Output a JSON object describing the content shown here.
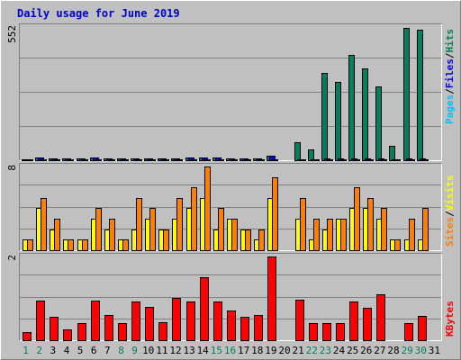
{
  "title": "Daily usage for June 2019",
  "colors": {
    "background": "#c0c0c0",
    "title": "#0000cc",
    "hits": "#00805c",
    "files": "#0000ff",
    "pages": "#00c0ff",
    "visits": "#ffff00",
    "sites": "#ff8000",
    "kbytes": "#ff0000",
    "weekend_day": "#00805c",
    "weekday": "#000000"
  },
  "chart_data": [
    {
      "type": "bar",
      "name_label": "hits-files-pages",
      "ymax_label": "552",
      "ylim": [
        0,
        552
      ],
      "legend": {
        "pages": "Pages",
        "files": "Files",
        "hits": "Hits",
        "sep": "/"
      },
      "categories": [
        "1",
        "2",
        "3",
        "4",
        "5",
        "6",
        "7",
        "8",
        "9",
        "10",
        "11",
        "12",
        "13",
        "14",
        "15",
        "16",
        "17",
        "18",
        "19",
        "20",
        "21",
        "22",
        "23",
        "24",
        "25",
        "26",
        "27",
        "28",
        "29",
        "30",
        "31"
      ],
      "series": [
        {
          "key": "hits",
          "values": [
            5,
            10,
            6,
            6,
            6,
            10,
            6,
            6,
            8,
            6,
            8,
            8,
            10,
            12,
            10,
            8,
            6,
            6,
            18,
            0,
            75,
            45,
            360,
            325,
            435,
            380,
            305,
            60,
            547,
            540,
            0
          ]
        },
        {
          "key": "files",
          "values": [
            5,
            10,
            6,
            6,
            6,
            10,
            6,
            6,
            8,
            6,
            8,
            8,
            10,
            12,
            10,
            8,
            6,
            6,
            18,
            0,
            5,
            5,
            6,
            6,
            6,
            6,
            6,
            5,
            6,
            6,
            0
          ]
        },
        {
          "key": "pages",
          "values": [
            3,
            5,
            3,
            3,
            3,
            5,
            3,
            3,
            4,
            3,
            4,
            4,
            5,
            5,
            5,
            4,
            3,
            3,
            4,
            0,
            2,
            2,
            3,
            3,
            3,
            3,
            3,
            2,
            3,
            3,
            0
          ]
        }
      ]
    },
    {
      "type": "bar",
      "name_label": "visits-sites",
      "ymax_label": "8",
      "ylim": [
        0,
        8
      ],
      "legend": {
        "visits": "Visits",
        "sites": "Sites",
        "sep": "/"
      },
      "categories": [
        "1",
        "2",
        "3",
        "4",
        "5",
        "6",
        "7",
        "8",
        "9",
        "10",
        "11",
        "12",
        "13",
        "14",
        "15",
        "16",
        "17",
        "18",
        "19",
        "20",
        "21",
        "22",
        "23",
        "24",
        "25",
        "26",
        "27",
        "28",
        "29",
        "30",
        "31"
      ],
      "series": [
        {
          "key": "visits",
          "values": [
            1,
            4,
            2,
            1,
            1,
            3,
            2,
            1,
            2,
            3,
            2,
            3,
            4,
            5,
            2,
            3,
            2,
            1,
            5,
            0,
            3,
            1,
            2,
            3,
            4,
            4,
            3,
            1,
            1,
            1,
            0
          ]
        },
        {
          "key": "sites",
          "values": [
            1,
            5,
            3,
            1,
            1,
            4,
            3,
            1,
            5,
            4,
            2,
            5,
            6,
            8,
            4,
            3,
            2,
            2,
            7,
            0,
            5,
            3,
            3,
            3,
            6,
            5,
            4,
            1,
            3,
            4,
            0
          ]
        }
      ]
    },
    {
      "type": "bar",
      "name_label": "kbytes",
      "ymax_label": "2",
      "ylim": [
        0,
        2
      ],
      "legend": {
        "kbytes": "KBytes"
      },
      "categories": [
        "1",
        "2",
        "3",
        "4",
        "5",
        "6",
        "7",
        "8",
        "9",
        "10",
        "11",
        "12",
        "13",
        "14",
        "15",
        "16",
        "17",
        "18",
        "19",
        "20",
        "21",
        "22",
        "23",
        "24",
        "25",
        "26",
        "27",
        "28",
        "29",
        "30",
        "31"
      ],
      "series": [
        {
          "key": "kbytes",
          "values": [
            0.2,
            0.95,
            0.55,
            0.25,
            0.4,
            0.95,
            0.6,
            0.4,
            0.92,
            0.8,
            0.42,
            1.0,
            0.92,
            1.5,
            0.92,
            0.72,
            0.55,
            0.6,
            2.0,
            0,
            0.96,
            0.4,
            0.4,
            0.4,
            0.92,
            0.77,
            1.1,
            0,
            0.4,
            0.58,
            0
          ]
        }
      ]
    }
  ],
  "day_labels": [
    "1",
    "2",
    "3",
    "4",
    "5",
    "6",
    "7",
    "8",
    "9",
    "10",
    "11",
    "12",
    "13",
    "14",
    "15",
    "16",
    "17",
    "18",
    "19",
    "20",
    "21",
    "22",
    "23",
    "24",
    "25",
    "26",
    "27",
    "28",
    "29",
    "30",
    "31"
  ],
  "weekend_days": [
    "1",
    "2",
    "8",
    "9",
    "15",
    "16",
    "22",
    "23",
    "29",
    "30"
  ]
}
